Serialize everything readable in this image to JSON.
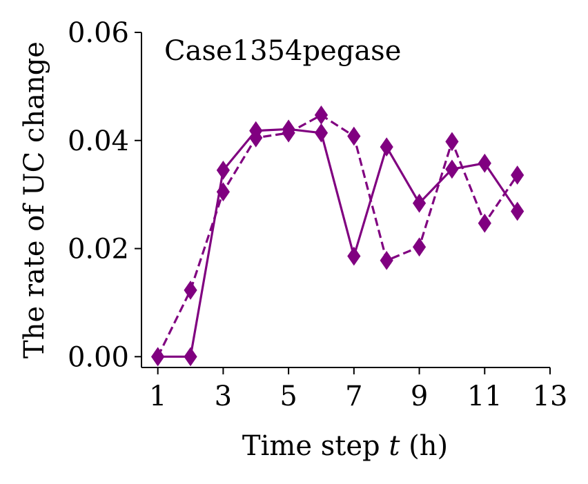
{
  "chart_data": {
    "type": "line",
    "title": "Case1354pegase",
    "xlabel": "Time step t (h)",
    "ylabel": "The rate of UC change",
    "xlim": [
      0.5,
      13
    ],
    "ylim": [
      -0.002,
      0.06
    ],
    "xticks": [
      "1",
      "3",
      "5",
      "7",
      "9",
      "11",
      "13"
    ],
    "yticks": [
      "0.00",
      "0.02",
      "0.04",
      "0.06"
    ],
    "grid": false,
    "color": "#800080",
    "x": [
      1,
      2,
      3,
      4,
      5,
      6,
      7,
      8,
      9,
      10,
      11,
      12
    ],
    "series": [
      {
        "style": "solid",
        "marker": "diamond",
        "values": [
          0.0,
          0.0,
          0.0345,
          0.0418,
          0.0421,
          0.0414,
          0.0186,
          0.0388,
          0.0284,
          0.0347,
          0.0358,
          0.0269
        ]
      },
      {
        "style": "dashed",
        "marker": "diamond",
        "values": [
          0.0,
          0.0123,
          0.0305,
          0.0405,
          0.0414,
          0.0447,
          0.0408,
          0.0178,
          0.0203,
          0.0398,
          0.0247,
          0.0336
        ]
      }
    ]
  }
}
